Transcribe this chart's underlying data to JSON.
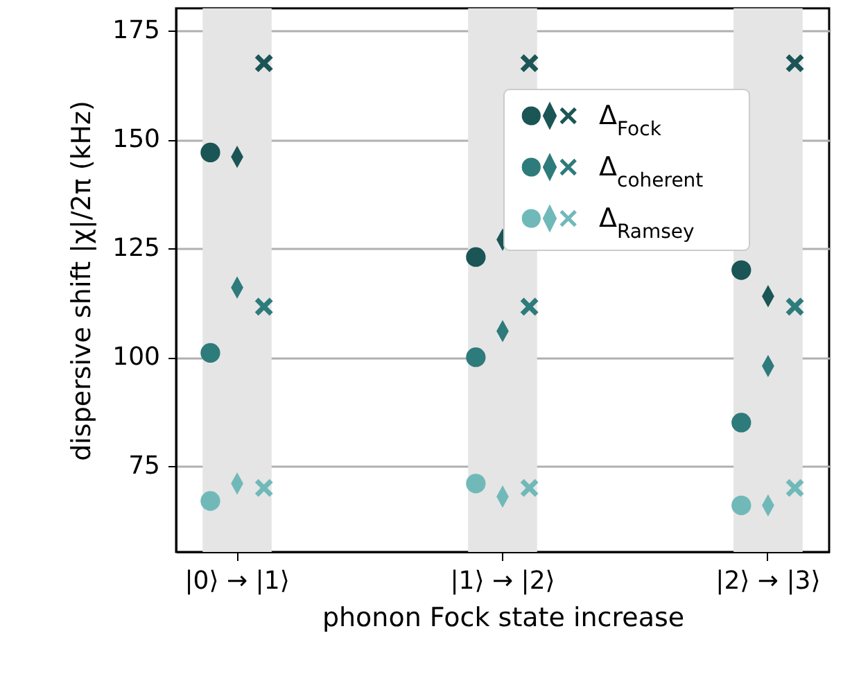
{
  "chart_data": {
    "type": "scatter",
    "xlabel": "phonon Fock state increase",
    "ylabel": "dispersive shift |χ|/2π (kHz)",
    "categories": [
      "|0⟩ → |1⟩",
      "|1⟩ → |2⟩",
      "|2⟩ → |3⟩"
    ],
    "ylim": [
      55.3,
      180.1
    ],
    "yticks": [
      75,
      100,
      125,
      150,
      175
    ],
    "grid": "y",
    "legend": "top right",
    "bands": [
      {
        "axis": "x",
        "from": "|0⟩ → |1⟩",
        "to": "|0⟩ → |1⟩",
        "color": "#e5e5e5"
      },
      {
        "axis": "x",
        "from": "|1⟩ → |2⟩",
        "to": "|1⟩ → |2⟩",
        "color": "#e5e5e5"
      },
      {
        "axis": "x",
        "from": "|2⟩ → |3⟩",
        "to": "|2⟩ → |3⟩",
        "color": "#e5e5e5"
      }
    ],
    "series": [
      {
        "name": "Δ$_{Fock}$",
        "color": "#1b5555",
        "marker": "circle",
        "values": [
          147,
          123,
          120
        ]
      },
      {
        "color": "#1b5555",
        "marker": "diamond",
        "values": [
          146,
          127,
          114
        ]
      },
      {
        "color": "#1b5555",
        "marker": "cross",
        "values": [
          167.5,
          167.5,
          167.5
        ]
      },
      {
        "name": "Δ$_{coherent}$",
        "color": "#2e7b7b",
        "marker": "circle",
        "values": [
          101,
          100,
          85
        ]
      },
      {
        "color": "#2e7b7b",
        "marker": "diamond",
        "values": [
          116,
          106,
          98
        ]
      },
      {
        "color": "#2e7b7b",
        "marker": "cross",
        "values": [
          111.6,
          111.6,
          111.6
        ]
      },
      {
        "name": "Δ$_{Ramsey}$",
        "color": "#71b9b9",
        "marker": "circle",
        "values": [
          67,
          71,
          66
        ]
      },
      {
        "color": "#71b9b9",
        "marker": "diamond",
        "values": [
          71,
          68,
          66
        ]
      },
      {
        "color": "#71b9b9",
        "marker": "cross",
        "values": [
          70,
          70,
          70
        ]
      }
    ]
  }
}
